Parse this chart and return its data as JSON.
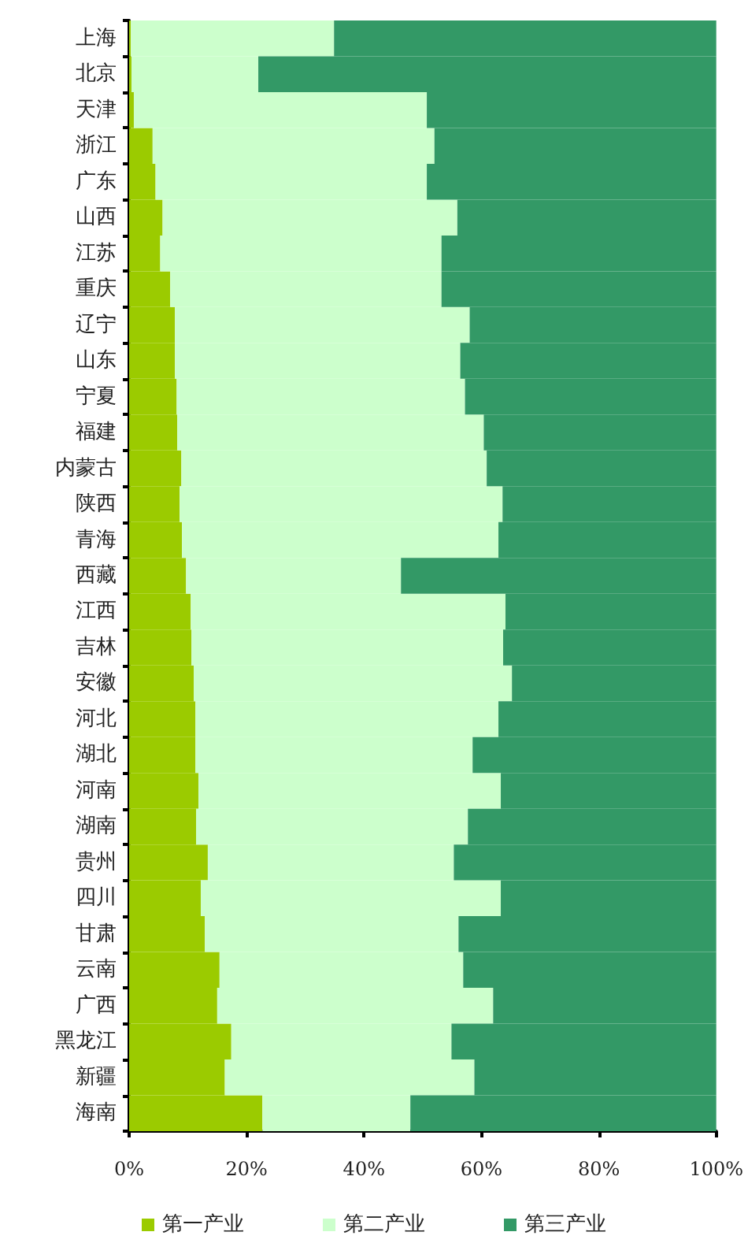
{
  "chart_data": {
    "type": "bar",
    "orientation": "horizontal",
    "stacked": true,
    "categories": [
      "上海",
      "北京",
      "天津",
      "浙江",
      "广东",
      "山西",
      "江苏",
      "重庆",
      "辽宁",
      "山东",
      "宁夏",
      "福建",
      "内蒙古",
      "陕西",
      "青海",
      "西藏",
      "江西",
      "吉林",
      "安徽",
      "河北",
      "湖北",
      "河南",
      "湖南",
      "贵州",
      "四川",
      "甘肃",
      "云南",
      "广西",
      "黑龙江",
      "新疆",
      "海南"
    ],
    "series": [
      {
        "name": "第一产业",
        "color": "#9bcb00",
        "values": [
          0.3,
          0.4,
          0.8,
          4.0,
          4.5,
          5.7,
          5.3,
          7.0,
          7.8,
          7.8,
          8.1,
          8.2,
          8.9,
          8.6,
          9.0,
          9.7,
          10.5,
          10.6,
          11.0,
          11.3,
          11.3,
          11.8,
          11.4,
          13.4,
          12.2,
          12.9,
          15.4,
          15.0,
          17.4,
          16.3,
          22.7
        ]
      },
      {
        "name": "第二产业",
        "color": "#ccffcc",
        "values": [
          34.6,
          21.6,
          49.9,
          48.0,
          46.2,
          50.2,
          47.9,
          46.2,
          50.2,
          48.6,
          49.1,
          52.2,
          52.0,
          55.0,
          53.9,
          36.6,
          53.6,
          53.1,
          54.2,
          51.6,
          47.2,
          51.5,
          46.3,
          41.9,
          51.1,
          43.2,
          41.5,
          47.0,
          37.5,
          42.5,
          25.2
        ]
      },
      {
        "name": "第三产业",
        "color": "#339966",
        "values": [
          65.1,
          78.0,
          49.3,
          48.0,
          49.3,
          44.1,
          46.8,
          46.8,
          42.0,
          43.6,
          42.8,
          39.6,
          39.1,
          36.4,
          37.1,
          53.7,
          35.9,
          36.3,
          34.8,
          37.1,
          41.5,
          36.7,
          42.3,
          44.7,
          36.7,
          43.9,
          43.1,
          38.0,
          45.1,
          41.2,
          52.1
        ]
      }
    ],
    "xlim": [
      0,
      100
    ],
    "xticks": [
      {
        "value": 0,
        "label": "0%"
      },
      {
        "value": 20,
        "label": "20%"
      },
      {
        "value": 40,
        "label": "40%"
      },
      {
        "value": 60,
        "label": "60%"
      },
      {
        "value": 80,
        "label": "80%"
      },
      {
        "value": 100,
        "label": "100%"
      }
    ],
    "grid": false,
    "legend": "bottom"
  }
}
